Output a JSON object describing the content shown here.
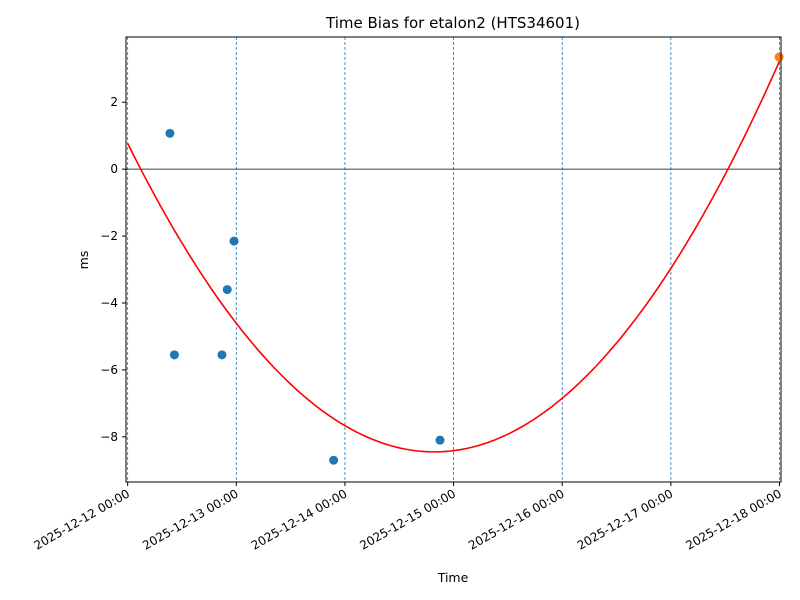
{
  "chart_data": {
    "type": "scatter",
    "title": "Time Bias for etalon2 (HTS34601)",
    "xlabel": "Time",
    "ylabel": "ms",
    "xlim": [
      "2025-12-11 23:38",
      "2025-12-18 00:20"
    ],
    "ylim": [
      -9.35,
      3.95
    ],
    "x_ticks": [
      "2025-12-12 00:00",
      "2025-12-13 00:00",
      "2025-12-14 00:00",
      "2025-12-15 00:00",
      "2025-12-16 00:00",
      "2025-12-17 00:00",
      "2025-12-18 00:00"
    ],
    "y_ticks": [
      2,
      0,
      -2,
      -4,
      -6,
      -8
    ],
    "y_tick_labels": [
      "2",
      "0",
      "−2",
      "−4",
      "−6",
      "−8"
    ],
    "grid": {
      "x_vertical_dashed": true,
      "y": false
    },
    "zero_line": 0,
    "series": [
      {
        "kind": "scatter",
        "color": "#1f77b4",
        "points": [
          {
            "x": "2025-12-12 09:20",
            "y": 1.07
          },
          {
            "x": "2025-12-12 10:20",
            "y": -5.55
          },
          {
            "x": "2025-12-12 20:50",
            "y": -5.55
          },
          {
            "x": "2025-12-12 22:00",
            "y": -3.6
          },
          {
            "x": "2025-12-12 23:30",
            "y": -2.15
          },
          {
            "x": "2025-12-13 21:30",
            "y": -8.7
          },
          {
            "x": "2025-12-14 21:00",
            "y": -8.1
          }
        ]
      },
      {
        "kind": "scatter",
        "color": "#ff7f0e",
        "points": [
          {
            "x": "2025-12-17 23:55",
            "y": 3.35
          }
        ]
      },
      {
        "kind": "line",
        "color": "#ff0000",
        "fit": "quadratic",
        "x_range": [
          "2025-12-12 00:00",
          "2025-12-18 00:00"
        ],
        "start_value": 0.77,
        "vertex": {
          "x": "2025-12-14 19:45",
          "y": -8.45
        }
      }
    ]
  }
}
